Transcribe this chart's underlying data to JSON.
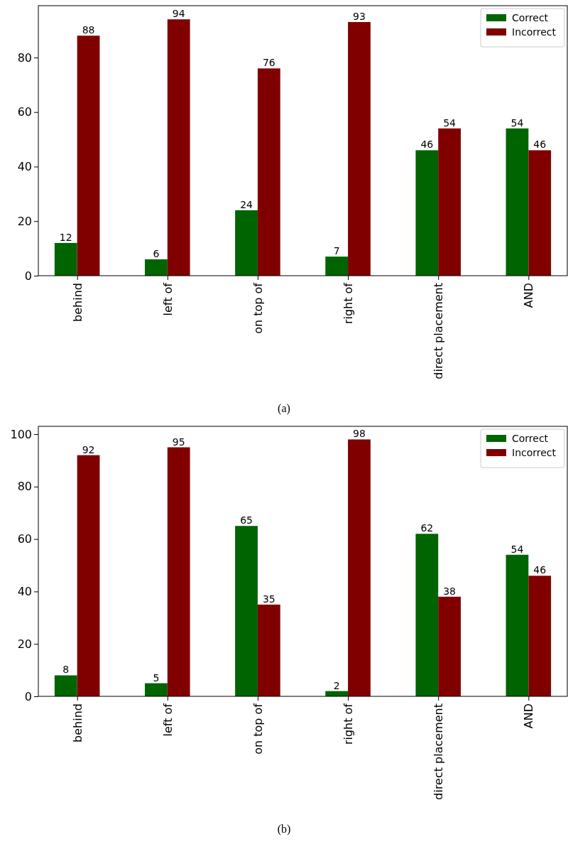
{
  "chart_data": [
    {
      "type": "bar",
      "categories": [
        "behind",
        "left of",
        "on top of",
        "right of",
        "direct placement",
        "AND"
      ],
      "series": [
        {
          "name": "Correct",
          "color": "#006400",
          "values": [
            12,
            6,
            24,
            7,
            46,
            54
          ]
        },
        {
          "name": "Incorrect",
          "color": "#800000",
          "values": [
            88,
            94,
            76,
            93,
            54,
            46
          ]
        }
      ],
      "ylim": [
        0,
        99
      ],
      "yticks": [
        0,
        20,
        40,
        60,
        80
      ],
      "data_labels": true,
      "legend": "top right",
      "grid": false,
      "annotations": [
        "(a)"
      ]
    },
    {
      "type": "bar",
      "categories": [
        "behind",
        "left of",
        "on top of",
        "right of",
        "direct placement",
        "AND"
      ],
      "series": [
        {
          "name": "Correct",
          "color": "#006400",
          "values": [
            8,
            5,
            65,
            2,
            62,
            54
          ]
        },
        {
          "name": "Incorrect",
          "color": "#800000",
          "values": [
            92,
            95,
            35,
            98,
            38,
            46
          ]
        }
      ],
      "ylim": [
        0,
        103
      ],
      "yticks": [
        0,
        20,
        40,
        60,
        80,
        100
      ],
      "data_labels": true,
      "legend": "top right",
      "grid": false,
      "annotations": [
        "(b)"
      ]
    }
  ]
}
